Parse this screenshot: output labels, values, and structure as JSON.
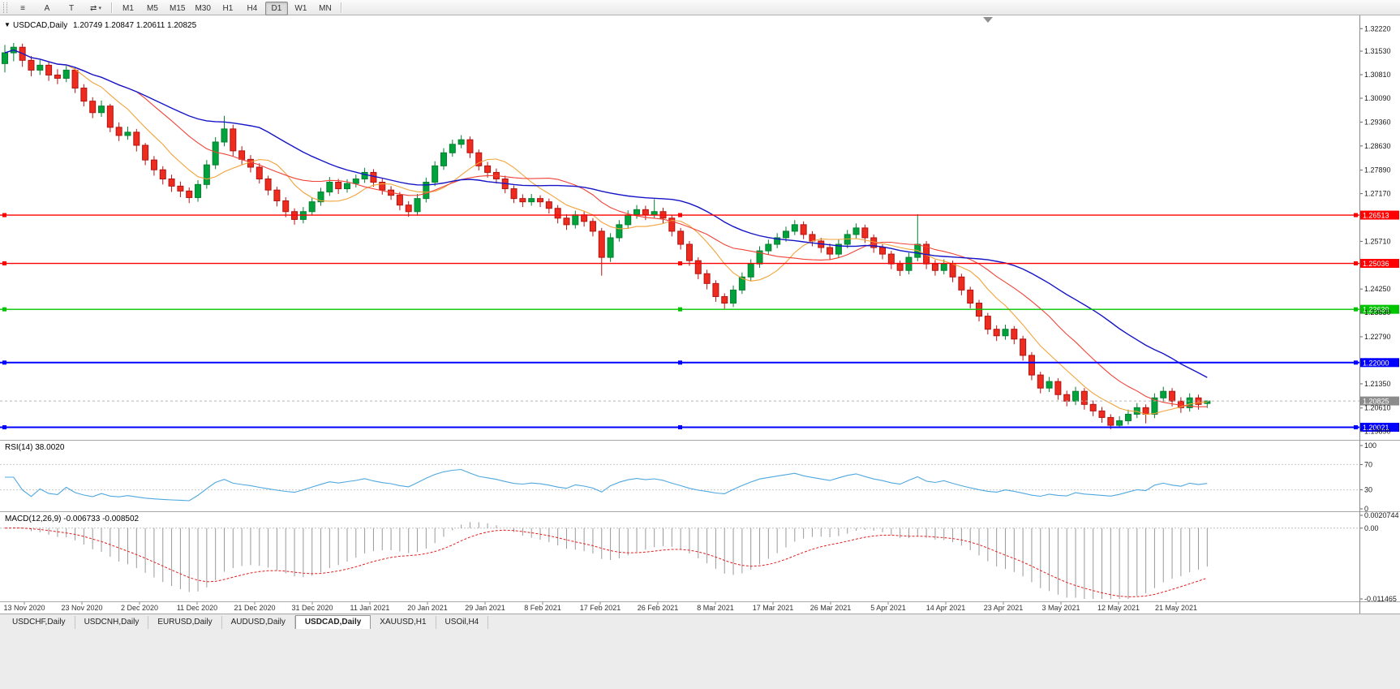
{
  "toolbar": {
    "left_buttons": [
      {
        "id": "charts-menu",
        "glyph": "≡"
      },
      {
        "id": "cursor-tool",
        "label": "A"
      },
      {
        "id": "text-tool",
        "label": "T"
      },
      {
        "id": "symbol-cycle",
        "glyph": "⇄",
        "caret": "▾"
      }
    ],
    "timeframes": [
      "M1",
      "M5",
      "M15",
      "M30",
      "H1",
      "H4",
      "D1",
      "W1",
      "MN"
    ],
    "active_timeframe": "D1"
  },
  "chart": {
    "collapse_icon": "▼",
    "symbol": "USDCAD,Daily",
    "ohlc": "1.20749  1.20847  1.20611  1.20825"
  },
  "chart_data": {
    "type": "candlestick",
    "symbol": "USDCAD",
    "period": "Daily",
    "last_ohlc": {
      "open": 1.20749,
      "high": 1.20847,
      "low": 1.20611,
      "close": 1.20825
    },
    "price_axis": {
      "top": 1.3245,
      "bottom": 1.1966,
      "ticks": [
        "1.32220",
        "1.31530",
        "1.30810",
        "1.30090",
        "1.29360",
        "1.28630",
        "1.27890",
        "1.27170",
        "1.25710",
        "1.24250",
        "1.23530",
        "1.22790",
        "1.21350",
        "1.20610",
        "1.19890"
      ]
    },
    "date_labels": [
      "13 Nov 2020",
      "23 Nov 2020",
      "2 Dec 2020",
      "11 Dec 2020",
      "21 Dec 2020",
      "31 Dec 2020",
      "11 Jan 2021",
      "20 Jan 2021",
      "29 Jan 2021",
      "8 Feb 2021",
      "17 Feb 2021",
      "26 Feb 2021",
      "8 Mar 2021",
      "17 Mar 2021",
      "26 Mar 2021",
      "5 Apr 2021",
      "14 Apr 2021",
      "23 Apr 2021",
      "3 May 2021",
      "12 May 2021",
      "21 May 2021"
    ],
    "candle_colors": {
      "up": "#00a23c",
      "up_border": "#067f31",
      "down": "#ee2b1f",
      "down_border": "#b31410"
    },
    "moving_averages": [
      {
        "name": "fast",
        "period": 8,
        "color": "#f2a33a"
      },
      {
        "name": "medium",
        "period": 16,
        "color": "#f04438"
      },
      {
        "name": "slow",
        "period": 30,
        "color": "#1515c8"
      }
    ],
    "horizontal_lines": [
      {
        "label": "1.26513",
        "price": 1.26513,
        "color": "#ff0000",
        "width": 1.4
      },
      {
        "label": "1.25036",
        "price": 1.25036,
        "color": "#ff0000",
        "width": 1.4
      },
      {
        "label": "1.23630",
        "price": 1.2363,
        "color": "#00c400",
        "width": 1.4
      },
      {
        "label": "1.22000",
        "price": 1.22,
        "color": "#0000ff",
        "width": 2
      },
      {
        "label": "1.20021",
        "price": 1.20021,
        "color": "#0000ff",
        "width": 2
      }
    ],
    "bid": {
      "label": "1.20825",
      "price": 1.20825,
      "color": "#8c8c8c"
    },
    "rsi": {
      "label": "RSI(14) 38.0020",
      "period": 14,
      "value": 38.002,
      "levels": [
        70,
        30
      ],
      "axis_ticks": [
        "100",
        "70",
        "30",
        "0"
      ],
      "color": "#4fa8e0"
    },
    "macd": {
      "label": "MACD(12,26,9) -0.006733 -0.008502",
      "fast": 12,
      "slow": 26,
      "signal_period": 9,
      "main": -0.006733,
      "signal": -0.008502,
      "axis_ticks": [
        "0.0020744",
        "0.00",
        "-0.011465"
      ],
      "max": 0.0020744,
      "min": -0.011465,
      "histogram_color": "#9a9a9a",
      "signal_color": "#e02020"
    },
    "candles": [
      [
        1.3115,
        1.3172,
        1.3088,
        1.3148
      ],
      [
        1.3148,
        1.3178,
        1.3122,
        1.3165
      ],
      [
        1.3165,
        1.3176,
        1.3105,
        1.3125
      ],
      [
        1.3125,
        1.3138,
        1.3076,
        1.3095
      ],
      [
        1.3095,
        1.3126,
        1.308,
        1.311
      ],
      [
        1.311,
        1.3122,
        1.3062,
        1.308
      ],
      [
        1.308,
        1.3098,
        1.3052,
        1.307
      ],
      [
        1.307,
        1.3108,
        1.3058,
        1.3095
      ],
      [
        1.3095,
        1.3103,
        1.3025,
        1.304
      ],
      [
        1.304,
        1.3052,
        1.2984,
        1.3
      ],
      [
        1.3,
        1.3012,
        1.2948,
        1.2965
      ],
      [
        1.2965,
        1.3002,
        1.2952,
        1.2985
      ],
      [
        1.2985,
        1.2992,
        1.2905,
        1.292
      ],
      [
        1.292,
        1.2935,
        1.2878,
        1.2895
      ],
      [
        1.2895,
        1.2922,
        1.2882,
        1.2905
      ],
      [
        1.2905,
        1.2915,
        1.2846,
        1.2865
      ],
      [
        1.2865,
        1.2872,
        1.2804,
        1.282
      ],
      [
        1.282,
        1.2832,
        1.2772,
        1.279
      ],
      [
        1.279,
        1.2801,
        1.2745,
        1.2762
      ],
      [
        1.2762,
        1.2775,
        1.2722,
        1.274
      ],
      [
        1.274,
        1.2754,
        1.2706,
        1.2725
      ],
      [
        1.2725,
        1.2736,
        1.2688,
        1.2705
      ],
      [
        1.2705,
        1.2758,
        1.2692,
        1.2745
      ],
      [
        1.2745,
        1.282,
        1.2732,
        1.2805
      ],
      [
        1.2805,
        1.289,
        1.2792,
        1.2875
      ],
      [
        1.2875,
        1.2955,
        1.2862,
        1.2915
      ],
      [
        1.2915,
        1.2928,
        1.2832,
        1.2848
      ],
      [
        1.2848,
        1.2862,
        1.2806,
        1.2822
      ],
      [
        1.2822,
        1.2835,
        1.2782,
        1.2798
      ],
      [
        1.2798,
        1.281,
        1.2748,
        1.2762
      ],
      [
        1.2762,
        1.2772,
        1.2712,
        1.2728
      ],
      [
        1.2728,
        1.2738,
        1.2678,
        1.2695
      ],
      [
        1.2695,
        1.2706,
        1.2645,
        1.2662
      ],
      [
        1.2662,
        1.2672,
        1.2622,
        1.2638
      ],
      [
        1.2638,
        1.2676,
        1.2626,
        1.2662
      ],
      [
        1.2662,
        1.2705,
        1.265,
        1.2692
      ],
      [
        1.2692,
        1.2735,
        1.268,
        1.2722
      ],
      [
        1.2722,
        1.2768,
        1.271,
        1.2752
      ],
      [
        1.2752,
        1.2762,
        1.2716,
        1.2732
      ],
      [
        1.2732,
        1.2761,
        1.272,
        1.2748
      ],
      [
        1.2748,
        1.2775,
        1.2736,
        1.2762
      ],
      [
        1.2762,
        1.2796,
        1.275,
        1.2782
      ],
      [
        1.2782,
        1.2792,
        1.2738,
        1.2752
      ],
      [
        1.2752,
        1.2763,
        1.2714,
        1.2728
      ],
      [
        1.2728,
        1.274,
        1.2698,
        1.2712
      ],
      [
        1.2712,
        1.2722,
        1.2666,
        1.2682
      ],
      [
        1.2682,
        1.2694,
        1.2646,
        1.2662
      ],
      [
        1.2662,
        1.2716,
        1.265,
        1.2702
      ],
      [
        1.2702,
        1.2766,
        1.269,
        1.2752
      ],
      [
        1.2752,
        1.2816,
        1.274,
        1.2802
      ],
      [
        1.2802,
        1.2856,
        1.279,
        1.2842
      ],
      [
        1.2842,
        1.2882,
        1.283,
        1.2868
      ],
      [
        1.2868,
        1.2896,
        1.2856,
        1.2882
      ],
      [
        1.2882,
        1.2892,
        1.2826,
        1.2842
      ],
      [
        1.2842,
        1.2852,
        1.2788,
        1.2802
      ],
      [
        1.2802,
        1.2814,
        1.2766,
        1.2782
      ],
      [
        1.2782,
        1.2794,
        1.2748,
        1.2762
      ],
      [
        1.2762,
        1.2772,
        1.2718,
        1.2732
      ],
      [
        1.2732,
        1.2742,
        1.2688,
        1.2702
      ],
      [
        1.2702,
        1.2715,
        1.2676,
        1.2692
      ],
      [
        1.2692,
        1.2716,
        1.268,
        1.2702
      ],
      [
        1.2702,
        1.2712,
        1.2676,
        1.2692
      ],
      [
        1.2692,
        1.2702,
        1.2656,
        1.2672
      ],
      [
        1.2672,
        1.2682,
        1.2626,
        1.2642
      ],
      [
        1.2642,
        1.2654,
        1.2606,
        1.2622
      ],
      [
        1.2622,
        1.2665,
        1.261,
        1.2652
      ],
      [
        1.2652,
        1.2662,
        1.2616,
        1.2632
      ],
      [
        1.2632,
        1.2642,
        1.2586,
        1.2602
      ],
      [
        1.2602,
        1.2612,
        1.2466,
        1.2522
      ],
      [
        1.2522,
        1.2596,
        1.2508,
        1.2582
      ],
      [
        1.2582,
        1.2636,
        1.257,
        1.2622
      ],
      [
        1.2622,
        1.2666,
        1.261,
        1.2652
      ],
      [
        1.2652,
        1.2682,
        1.264,
        1.2668
      ],
      [
        1.2668,
        1.268,
        1.2636,
        1.2652
      ],
      [
        1.2652,
        1.27,
        1.2642,
        1.2662
      ],
      [
        1.2662,
        1.2674,
        1.2626,
        1.2642
      ],
      [
        1.2642,
        1.2652,
        1.2586,
        1.2602
      ],
      [
        1.2602,
        1.2612,
        1.2546,
        1.2562
      ],
      [
        1.2562,
        1.2572,
        1.2496,
        1.2512
      ],
      [
        1.2512,
        1.2522,
        1.2455,
        1.2472
      ],
      [
        1.2472,
        1.2484,
        1.2424,
        1.2442
      ],
      [
        1.2442,
        1.2452,
        1.2386,
        1.2402
      ],
      [
        1.2402,
        1.2412,
        1.2365,
        1.2382
      ],
      [
        1.2382,
        1.2436,
        1.237,
        1.2422
      ],
      [
        1.2422,
        1.2476,
        1.241,
        1.2462
      ],
      [
        1.2462,
        1.2516,
        1.245,
        1.2502
      ],
      [
        1.2502,
        1.2556,
        1.249,
        1.2542
      ],
      [
        1.2542,
        1.2576,
        1.253,
        1.2562
      ],
      [
        1.2562,
        1.2596,
        1.255,
        1.2582
      ],
      [
        1.2582,
        1.2616,
        1.257,
        1.2602
      ],
      [
        1.2602,
        1.2636,
        1.259,
        1.2622
      ],
      [
        1.2622,
        1.2632,
        1.2578,
        1.2592
      ],
      [
        1.2592,
        1.2602,
        1.2556,
        1.2572
      ],
      [
        1.2572,
        1.2582,
        1.2536,
        1.2552
      ],
      [
        1.2552,
        1.2564,
        1.2516,
        1.2532
      ],
      [
        1.2532,
        1.2576,
        1.252,
        1.2562
      ],
      [
        1.2562,
        1.2606,
        1.255,
        1.2592
      ],
      [
        1.2592,
        1.2626,
        1.258,
        1.2612
      ],
      [
        1.2612,
        1.2622,
        1.2566,
        1.2582
      ],
      [
        1.2582,
        1.2592,
        1.2536,
        1.2552
      ],
      [
        1.2552,
        1.2562,
        1.2516,
        1.2532
      ],
      [
        1.2532,
        1.2542,
        1.2486,
        1.2502
      ],
      [
        1.2502,
        1.2512,
        1.2465,
        1.2482
      ],
      [
        1.2482,
        1.2536,
        1.247,
        1.2522
      ],
      [
        1.2522,
        1.2654,
        1.251,
        1.2562
      ],
      [
        1.2562,
        1.2572,
        1.2486,
        1.2502
      ],
      [
        1.2502,
        1.2514,
        1.2466,
        1.2482
      ],
      [
        1.2482,
        1.2516,
        1.247,
        1.2502
      ],
      [
        1.2502,
        1.2512,
        1.2446,
        1.2462
      ],
      [
        1.2462,
        1.2472,
        1.2406,
        1.2422
      ],
      [
        1.2422,
        1.2432,
        1.2366,
        1.2382
      ],
      [
        1.2382,
        1.2392,
        1.2326,
        1.2342
      ],
      [
        1.2342,
        1.2352,
        1.2286,
        1.2302
      ],
      [
        1.2302,
        1.2314,
        1.2266,
        1.2282
      ],
      [
        1.2282,
        1.2316,
        1.227,
        1.2302
      ],
      [
        1.2302,
        1.2312,
        1.2256,
        1.2272
      ],
      [
        1.2272,
        1.2282,
        1.2206,
        1.2222
      ],
      [
        1.2222,
        1.2232,
        1.2146,
        1.2162
      ],
      [
        1.2162,
        1.2172,
        1.2106,
        1.2122
      ],
      [
        1.2122,
        1.2156,
        1.211,
        1.2142
      ],
      [
        1.2142,
        1.2152,
        1.2086,
        1.2102
      ],
      [
        1.2102,
        1.2114,
        1.2066,
        1.2082
      ],
      [
        1.2082,
        1.2126,
        1.207,
        1.2112
      ],
      [
        1.2112,
        1.2122,
        1.2056,
        1.2072
      ],
      [
        1.2072,
        1.2084,
        1.2036,
        1.2052
      ],
      [
        1.2052,
        1.2064,
        1.2016,
        1.2032
      ],
      [
        1.2032,
        1.2042,
        1.1996,
        1.2008
      ],
      [
        1.2008,
        1.2036,
        1.2,
        1.2022
      ],
      [
        1.2022,
        1.2056,
        1.201,
        1.2042
      ],
      [
        1.2042,
        1.2076,
        1.203,
        1.2062
      ],
      [
        1.2062,
        1.2072,
        1.2014,
        1.2042
      ],
      [
        1.2042,
        1.2106,
        1.203,
        1.2092
      ],
      [
        1.2092,
        1.2126,
        1.208,
        1.2112
      ],
      [
        1.2112,
        1.2122,
        1.2066,
        1.2082
      ],
      [
        1.2082,
        1.2094,
        1.2046,
        1.2062
      ],
      [
        1.2062,
        1.2106,
        1.205,
        1.2092
      ],
      [
        1.2092,
        1.2102,
        1.2056,
        1.2072
      ],
      [
        1.20749,
        1.20847,
        1.20611,
        1.20825
      ]
    ]
  },
  "tabs": {
    "items": [
      "USDCHF,Daily",
      "USDCNH,Daily",
      "EURUSD,Daily",
      "AUDUSD,Daily",
      "USDCAD,Daily",
      "XAUUSD,H1",
      "USOil,H4"
    ],
    "active": "USDCAD,Daily"
  }
}
